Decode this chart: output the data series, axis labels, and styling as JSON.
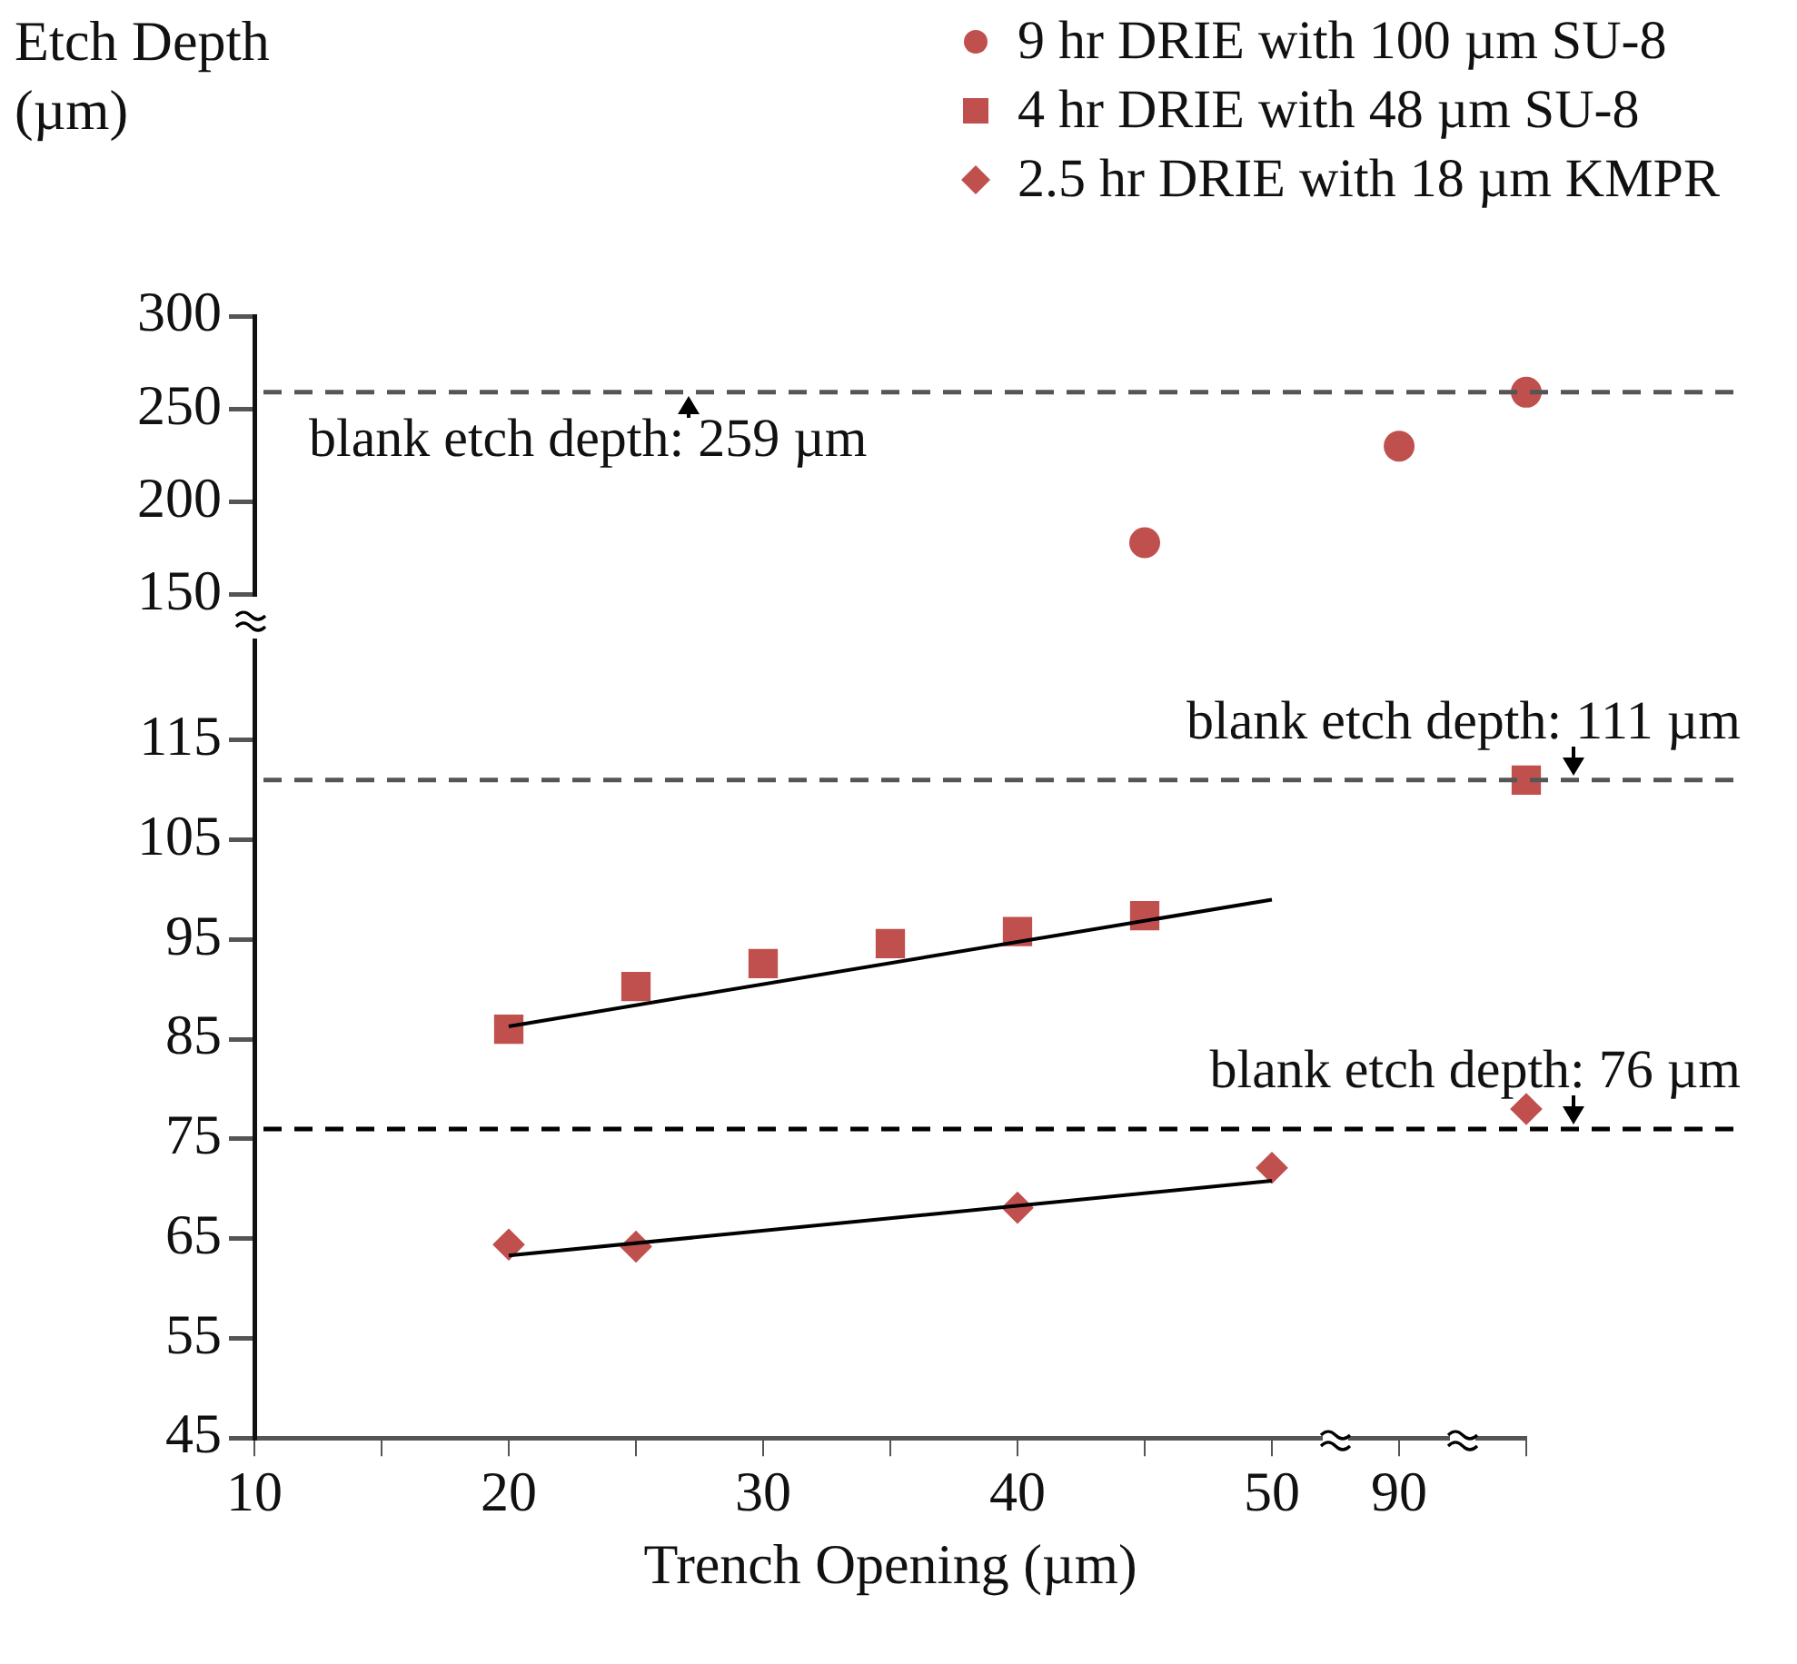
{
  "chart_data": [
    {
      "type": "scatter",
      "ylabel": "Etch Depth (µm)",
      "categories": [
        "10",
        null,
        "20",
        null,
        "30",
        null,
        "40",
        null,
        "50",
        "90",
        null
      ],
      "series": [
        {
          "name": "9 hr DRIE with 100 µm SU-8",
          "color": "#c0504d",
          "marker": "circle",
          "values": [
            null,
            null,
            null,
            null,
            null,
            null,
            null,
            178,
            null,
            230,
            259
          ]
        }
      ],
      "ylim": [
        150,
        300
      ],
      "yticks": [
        150,
        200,
        250,
        300
      ],
      "tick_labels": "y",
      "legend": "top right",
      "ref_lines": [
        {
          "axis": "y",
          "value": 259,
          "label": "blank etch depth: 259 µm",
          "color": "#555555",
          "line_style": "dashed"
        }
      ]
    },
    {
      "type": "scatter",
      "xlabel": "Trench Opening (µm)",
      "categories": [
        "10",
        null,
        "20",
        null,
        "30",
        null,
        "40",
        null,
        "50",
        "90",
        null
      ],
      "series": [
        {
          "name": "4 hr DRIE with 48 µm SU-8",
          "color": "#c0504d",
          "marker": "square",
          "values": [
            null,
            null,
            86,
            90.3,
            92.6,
            94.6,
            95.8,
            97.4,
            null,
            null,
            111
          ]
        },
        {
          "name": "2.5 hr DRIE with 18 µm KMPR",
          "color": "#c0504d",
          "marker": "diamond",
          "values": [
            null,
            null,
            64.4,
            64.2,
            null,
            null,
            68.1,
            null,
            72.1,
            null,
            78
          ]
        },
        {
          "type": "line",
          "color": "#000000",
          "marker": "none",
          "values": [
            null,
            null,
            86.3,
            null,
            null,
            null,
            null,
            null,
            99,
            null,
            null
          ]
        },
        {
          "type": "line",
          "color": "#000000",
          "marker": "none",
          "values": [
            null,
            null,
            63.3,
            null,
            null,
            null,
            null,
            null,
            70.8,
            null,
            null
          ]
        }
      ],
      "ylim": [
        45,
        125
      ],
      "yticks": [
        45,
        55,
        65,
        75,
        85,
        95,
        105,
        115
      ],
      "legend": "top right",
      "ref_lines": [
        {
          "axis": "y",
          "value": 111,
          "label": "blank etch depth: 111 µm",
          "color": "#555555",
          "line_style": "dashed"
        },
        {
          "axis": "y",
          "value": 76,
          "label": "blank etch depth: 76 µm",
          "color": "#000000",
          "line_style": "dashed"
        }
      ]
    }
  ]
}
